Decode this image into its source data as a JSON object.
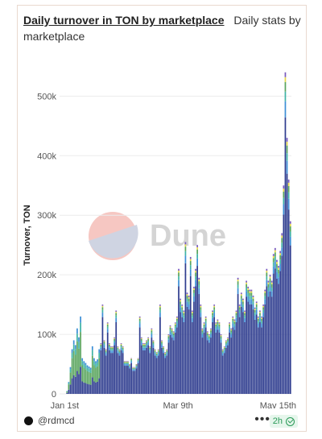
{
  "header": {
    "title": "Daily turnover in TON by marketplace",
    "subtitle": "Daily stats by marketplace"
  },
  "watermark": {
    "text": "Dune"
  },
  "footer": {
    "author": "@rdmcd",
    "more_label": "•••",
    "freshness": "2h"
  },
  "colors": {
    "series_primary": "#2f3d8f",
    "series_blue": "#3d8fd6",
    "series_green": "#5aa55e",
    "series_teal": "#3fb3a6",
    "series_yellow": "#e6d84a",
    "series_purple": "#7a5bbf",
    "series_red": "#e4594a",
    "series_grey": "#9a9a9a"
  },
  "chart_data": {
    "type": "bar",
    "stacked": true,
    "ylabel": "Turnover, TON",
    "xlabel": "",
    "ylim": [
      0,
      560000
    ],
    "yticks": [
      0,
      100000,
      200000,
      300000,
      400000,
      500000
    ],
    "ytick_labels": [
      "0",
      "100k",
      "200k",
      "300k",
      "400k",
      "500k"
    ],
    "x_tick_labels": [
      {
        "label": "Jan 1st",
        "day": 3
      },
      {
        "label": "Mar 9th",
        "day": 70
      },
      {
        "label": "May 15th",
        "day": 136
      }
    ],
    "grid": true,
    "legend": "none",
    "days": [
      {
        "d": 0,
        "v": 0
      },
      {
        "d": 1,
        "v": 0
      },
      {
        "d": 2,
        "v": 0
      },
      {
        "d": 3,
        "v": 0
      },
      {
        "d": 4,
        "v": 5000
      },
      {
        "d": 5,
        "v": 20000
      },
      {
        "d": 6,
        "v": 45000
      },
      {
        "d": 7,
        "v": 75000
      },
      {
        "d": 8,
        "v": 90000
      },
      {
        "d": 9,
        "v": 82000
      },
      {
        "d": 10,
        "v": 110000
      },
      {
        "d": 11,
        "v": 95000
      },
      {
        "d": 12,
        "v": 130000
      },
      {
        "d": 13,
        "v": 60000
      },
      {
        "d": 14,
        "v": 55000
      },
      {
        "d": 15,
        "v": 52000
      },
      {
        "d": 16,
        "v": 48000
      },
      {
        "d": 17,
        "v": 46000
      },
      {
        "d": 18,
        "v": 44000
      },
      {
        "d": 19,
        "v": 80000
      },
      {
        "d": 20,
        "v": 60000
      },
      {
        "d": 21,
        "v": 55000
      },
      {
        "d": 22,
        "v": 58000
      },
      {
        "d": 23,
        "v": 75000
      },
      {
        "d": 24,
        "v": 85000
      },
      {
        "d": 25,
        "v": 150000
      },
      {
        "d": 26,
        "v": 90000
      },
      {
        "d": 27,
        "v": 75000
      },
      {
        "d": 28,
        "v": 120000
      },
      {
        "d": 29,
        "v": 85000
      },
      {
        "d": 30,
        "v": 80000
      },
      {
        "d": 31,
        "v": 80000
      },
      {
        "d": 32,
        "v": 95000
      },
      {
        "d": 33,
        "v": 140000
      },
      {
        "d": 34,
        "v": 80000
      },
      {
        "d": 35,
        "v": 75000
      },
      {
        "d": 36,
        "v": 85000
      },
      {
        "d": 37,
        "v": 80000
      },
      {
        "d": 38,
        "v": 55000
      },
      {
        "d": 39,
        "v": 55000
      },
      {
        "d": 40,
        "v": 55000
      },
      {
        "d": 41,
        "v": 50000
      },
      {
        "d": 42,
        "v": 60000
      },
      {
        "d": 43,
        "v": 45000
      },
      {
        "d": 44,
        "v": 45000
      },
      {
        "d": 45,
        "v": 50000
      },
      {
        "d": 46,
        "v": 60000
      },
      {
        "d": 47,
        "v": 130000
      },
      {
        "d": 48,
        "v": 95000
      },
      {
        "d": 49,
        "v": 85000
      },
      {
        "d": 50,
        "v": 85000
      },
      {
        "d": 51,
        "v": 90000
      },
      {
        "d": 52,
        "v": 95000
      },
      {
        "d": 53,
        "v": 80000
      },
      {
        "d": 54,
        "v": 110000
      },
      {
        "d": 55,
        "v": 90000
      },
      {
        "d": 56,
        "v": 75000
      },
      {
        "d": 57,
        "v": 70000
      },
      {
        "d": 58,
        "v": 75000
      },
      {
        "d": 59,
        "v": 150000
      },
      {
        "d": 60,
        "v": 90000
      },
      {
        "d": 61,
        "v": 80000
      },
      {
        "d": 62,
        "v": 70000
      },
      {
        "d": 63,
        "v": 75000
      },
      {
        "d": 64,
        "v": 100000
      },
      {
        "d": 65,
        "v": 115000
      },
      {
        "d": 66,
        "v": 110000
      },
      {
        "d": 67,
        "v": 105000
      },
      {
        "d": 68,
        "v": 120000
      },
      {
        "d": 69,
        "v": 130000
      },
      {
        "d": 70,
        "v": 210000
      },
      {
        "d": 71,
        "v": 160000
      },
      {
        "d": 72,
        "v": 150000
      },
      {
        "d": 73,
        "v": 140000
      },
      {
        "d": 74,
        "v": 255000
      },
      {
        "d": 75,
        "v": 170000
      },
      {
        "d": 76,
        "v": 165000
      },
      {
        "d": 77,
        "v": 230000
      },
      {
        "d": 78,
        "v": 140000
      },
      {
        "d": 79,
        "v": 180000
      },
      {
        "d": 80,
        "v": 210000
      },
      {
        "d": 81,
        "v": 250000
      },
      {
        "d": 82,
        "v": 195000
      },
      {
        "d": 83,
        "v": 150000
      },
      {
        "d": 84,
        "v": 110000
      },
      {
        "d": 85,
        "v": 120000
      },
      {
        "d": 86,
        "v": 130000
      },
      {
        "d": 87,
        "v": 105000
      },
      {
        "d": 88,
        "v": 100000
      },
      {
        "d": 89,
        "v": 110000
      },
      {
        "d": 90,
        "v": 140000
      },
      {
        "d": 91,
        "v": 150000
      },
      {
        "d": 92,
        "v": 120000
      },
      {
        "d": 93,
        "v": 125000
      },
      {
        "d": 94,
        "v": 120000
      },
      {
        "d": 95,
        "v": 100000
      },
      {
        "d": 96,
        "v": 75000
      },
      {
        "d": 97,
        "v": 80000
      },
      {
        "d": 98,
        "v": 90000
      },
      {
        "d": 99,
        "v": 95000
      },
      {
        "d": 100,
        "v": 120000
      },
      {
        "d": 101,
        "v": 110000
      },
      {
        "d": 102,
        "v": 130000
      },
      {
        "d": 103,
        "v": 125000
      },
      {
        "d": 104,
        "v": 140000
      },
      {
        "d": 105,
        "v": 195000
      },
      {
        "d": 106,
        "v": 150000
      },
      {
        "d": 107,
        "v": 170000
      },
      {
        "d": 108,
        "v": 160000
      },
      {
        "d": 109,
        "v": 140000
      },
      {
        "d": 110,
        "v": 190000
      },
      {
        "d": 111,
        "v": 180000
      },
      {
        "d": 112,
        "v": 175000
      },
      {
        "d": 113,
        "v": 175000
      },
      {
        "d": 114,
        "v": 165000
      },
      {
        "d": 115,
        "v": 145000
      },
      {
        "d": 116,
        "v": 155000
      },
      {
        "d": 117,
        "v": 130000
      },
      {
        "d": 118,
        "v": 140000
      },
      {
        "d": 119,
        "v": 130000
      },
      {
        "d": 120,
        "v": 150000
      },
      {
        "d": 121,
        "v": 175000
      },
      {
        "d": 122,
        "v": 210000
      },
      {
        "d": 123,
        "v": 190000
      },
      {
        "d": 124,
        "v": 200000
      },
      {
        "d": 125,
        "v": 190000
      },
      {
        "d": 126,
        "v": 235000
      },
      {
        "d": 127,
        "v": 245000
      },
      {
        "d": 128,
        "v": 225000
      },
      {
        "d": 129,
        "v": 215000
      },
      {
        "d": 130,
        "v": 240000
      },
      {
        "d": 131,
        "v": 270000
      },
      {
        "d": 132,
        "v": 350000
      },
      {
        "d": 133,
        "v": 540000
      },
      {
        "d": 134,
        "v": 430000
      },
      {
        "d": 135,
        "v": 360000
      },
      {
        "d": 136,
        "v": 290000
      }
    ]
  }
}
